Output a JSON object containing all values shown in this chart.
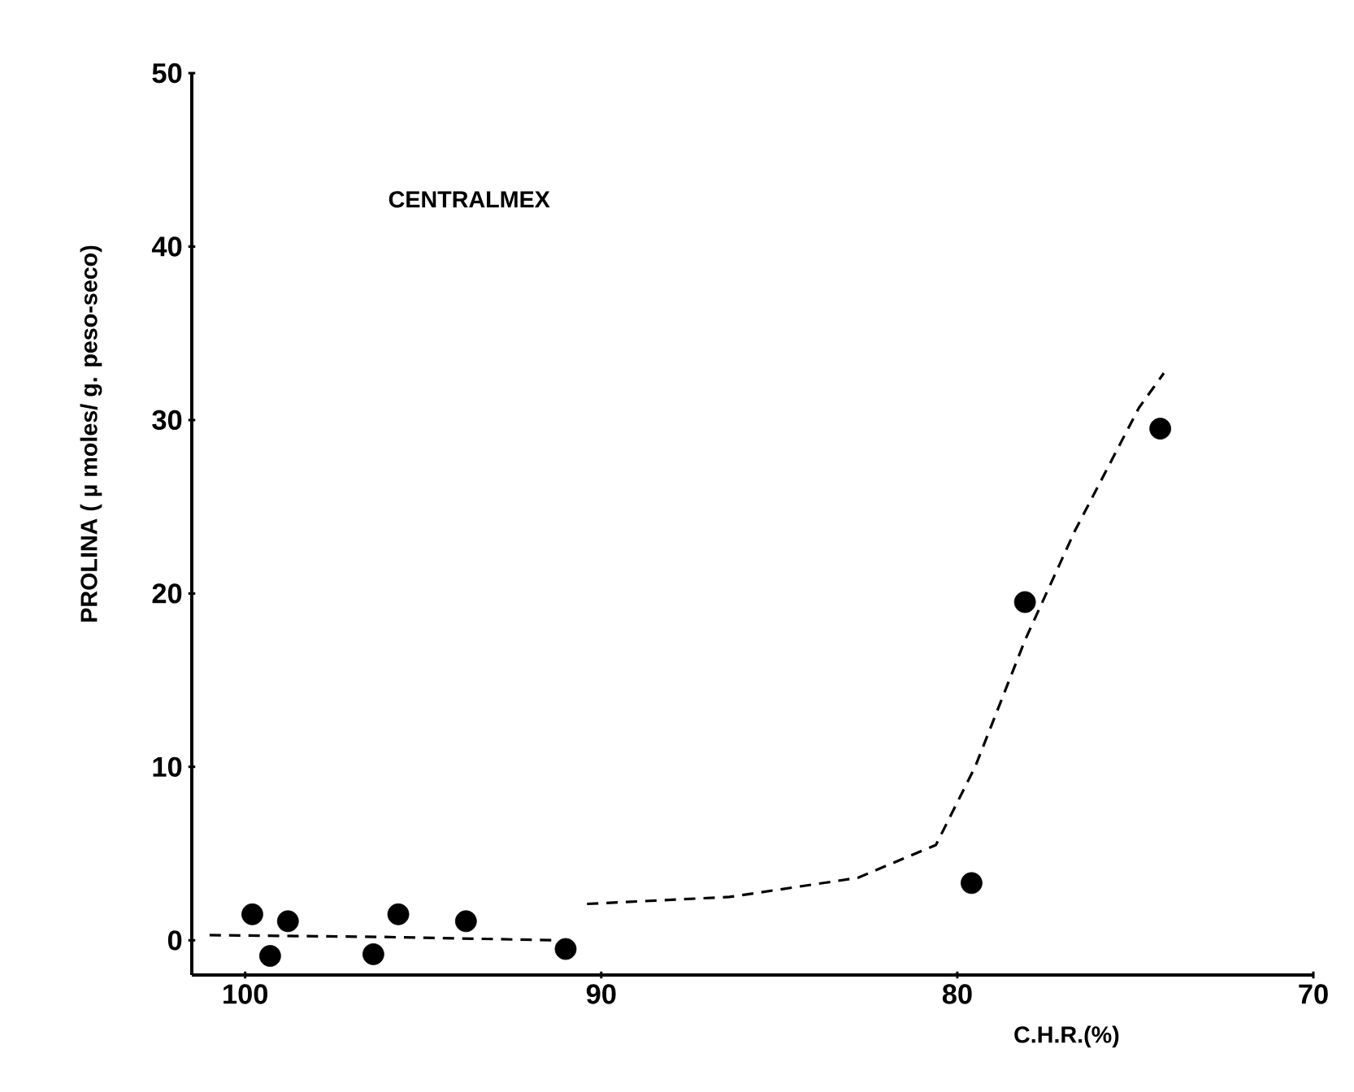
{
  "chart_data": {
    "type": "scatter",
    "xlabel": "C.H.R.(%)",
    "ylabel": "PROLINA ( µ moles/ g. peso-seco)",
    "annotations": [
      "CENTRALMEX"
    ],
    "xlim": [
      101.5,
      70
    ],
    "xticks": [
      100,
      90,
      80,
      70
    ],
    "ylim": [
      -2,
      50
    ],
    "yticks": [
      0,
      10,
      20,
      30,
      40,
      50
    ],
    "grid": false,
    "series": [
      {
        "color": "#000000",
        "marker": "circle",
        "x": [
          99.8,
          99.3,
          98.8,
          96.4,
          95.7,
          93.8,
          91.0,
          79.6,
          78.1,
          74.3
        ],
        "values": [
          1.5,
          -0.9,
          1.1,
          -0.8,
          1.5,
          1.1,
          -0.5,
          3.3,
          19.5,
          29.5
        ]
      },
      {
        "type": "line",
        "color": "#000000",
        "marker": "none",
        "line_style": "dashed",
        "x": [
          101.0,
          96.3,
          91.2,
          90.6,
          90.4,
          86.4,
          82.8,
          80.6,
          79.5,
          78.1,
          76.7,
          74.9,
          74.2
        ],
        "values": [
          0.3,
          0.2,
          0.0,
          null,
          2.1,
          2.5,
          3.6,
          5.5,
          10,
          17.3,
          23.6,
          30.7,
          32.7
        ]
      }
    ]
  }
}
